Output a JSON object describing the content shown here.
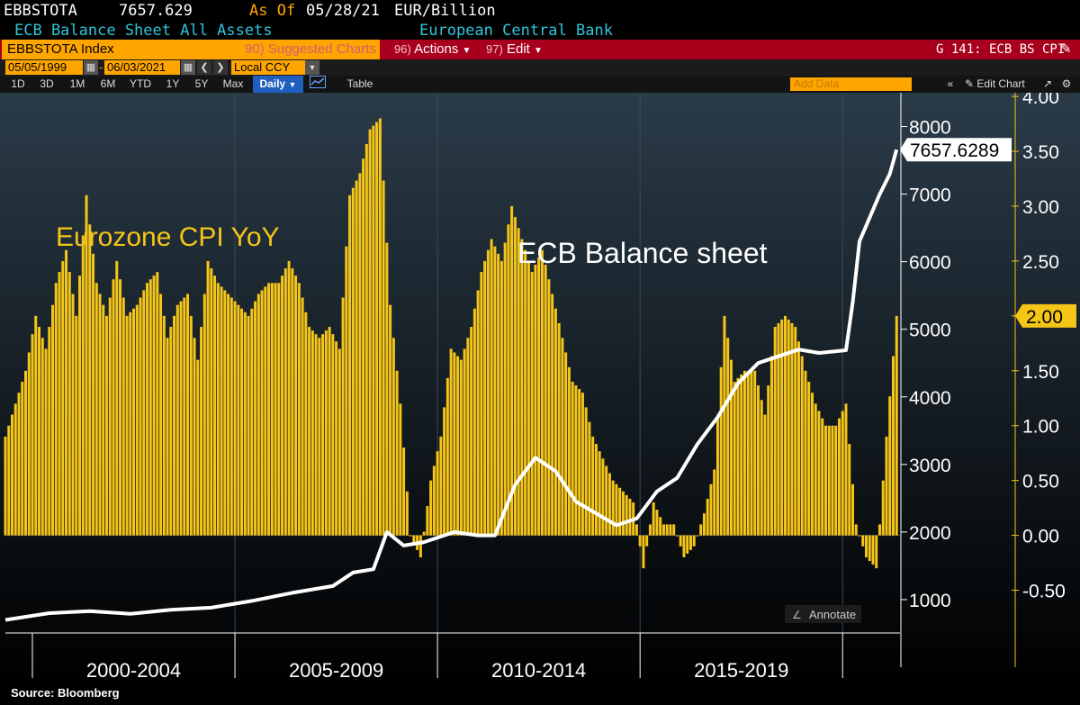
{
  "header": {
    "ticker": "EBBSTOTA",
    "last_value": "7657.629",
    "as_of_label": "As Of",
    "as_of_date": "05/28/21",
    "unit": "EUR/Billion",
    "description": "ECB Balance Sheet All Assets",
    "source_name": "European Central Bank"
  },
  "toolbar": {
    "ticker_field": "EBBSTOTA Index",
    "suggested_num": "90)",
    "suggested_label": "Suggested Charts",
    "actions_num": "96)",
    "actions_label": "Actions",
    "edit_num": "97)",
    "edit_label": "Edit",
    "chart_id": "G 141: ECB BS CPI",
    "start_date": "05/05/1999",
    "end_date": "06/03/2021",
    "currency": "Local CCY",
    "ranges": [
      "1D",
      "3D",
      "1M",
      "6M",
      "YTD",
      "1Y",
      "5Y",
      "Max"
    ],
    "frequency": "Daily",
    "table_label": "Table",
    "add_data_placeholder": "Add Data",
    "edit_chart_label": "Edit Chart",
    "annotate_label": "Annotate"
  },
  "footer": {
    "source": "Source: Bloomberg"
  },
  "colors": {
    "background_top": "#2a3b48",
    "background_bottom": "#000000",
    "cpi_bars": "#f5c518",
    "balance_line": "#ffffff",
    "accent_orange": "#ffa500",
    "toolbar_red": "#a8001c"
  },
  "chart_data": {
    "type": "bar",
    "annotations": [
      "Eurozone CPI YoY",
      "ECB Balance sheet"
    ],
    "x_category_labels": [
      "2000-2004",
      "2005-2009",
      "2010-2014",
      "2015-2019"
    ],
    "xlim": [
      "1999-05",
      "2021-06"
    ],
    "left_axis": {
      "ylim": [
        0,
        8500
      ],
      "ticks": [
        1000,
        2000,
        3000,
        4000,
        5000,
        6000,
        7000,
        8000
      ],
      "tick_labels": [
        "1000",
        "2000",
        "3000",
        "4000",
        "5000",
        "6000",
        "7000",
        "8000"
      ]
    },
    "right_axis": {
      "ylim": [
        -0.75,
        4.05
      ],
      "ticks": [
        -0.5,
        0,
        0.5,
        1,
        1.5,
        2,
        2.5,
        3,
        3.5,
        4
      ],
      "tick_labels": [
        "-0.50",
        "0.00",
        "0.50",
        "1.00",
        "1.50",
        "2.00",
        "2.50",
        "3.00",
        "3.50",
        "4.00"
      ]
    },
    "last_value_labels": {
      "balance_sheet": "7657.6289",
      "cpi": "2.00"
    },
    "series": [
      {
        "name": "Eurozone CPI YoY",
        "kind": "bar",
        "axis": "right",
        "points": [
          [
            "1999-05",
            0.9
          ],
          [
            "1999-08",
            1.2
          ],
          [
            "1999-11",
            1.5
          ],
          [
            "2000-02",
            2.0
          ],
          [
            "2000-05",
            1.7
          ],
          [
            "2000-08",
            2.3
          ],
          [
            "2000-11",
            2.6
          ],
          [
            "2001-02",
            2.0
          ],
          [
            "2001-05",
            3.1
          ],
          [
            "2001-08",
            2.3
          ],
          [
            "2001-11",
            2.0
          ],
          [
            "2002-02",
            2.5
          ],
          [
            "2002-05",
            2.0
          ],
          [
            "2002-08",
            2.1
          ],
          [
            "2002-11",
            2.3
          ],
          [
            "2003-02",
            2.4
          ],
          [
            "2003-05",
            1.8
          ],
          [
            "2003-08",
            2.1
          ],
          [
            "2003-11",
            2.2
          ],
          [
            "2004-02",
            1.6
          ],
          [
            "2004-05",
            2.5
          ],
          [
            "2004-08",
            2.3
          ],
          [
            "2004-11",
            2.2
          ],
          [
            "2005-02",
            2.1
          ],
          [
            "2005-05",
            2.0
          ],
          [
            "2005-08",
            2.2
          ],
          [
            "2005-11",
            2.3
          ],
          [
            "2006-02",
            2.3
          ],
          [
            "2006-05",
            2.5
          ],
          [
            "2006-08",
            2.3
          ],
          [
            "2006-11",
            1.9
          ],
          [
            "2007-02",
            1.8
          ],
          [
            "2007-05",
            1.9
          ],
          [
            "2007-08",
            1.7
          ],
          [
            "2007-11",
            3.1
          ],
          [
            "2008-02",
            3.3
          ],
          [
            "2008-05",
            3.7
          ],
          [
            "2008-08",
            3.8
          ],
          [
            "2008-11",
            2.1
          ],
          [
            "2009-02",
            1.2
          ],
          [
            "2009-05",
            0.0
          ],
          [
            "2009-08",
            -0.2
          ],
          [
            "2009-11",
            0.5
          ],
          [
            "2010-02",
            0.9
          ],
          [
            "2010-05",
            1.7
          ],
          [
            "2010-08",
            1.6
          ],
          [
            "2010-11",
            1.9
          ],
          [
            "2011-02",
            2.4
          ],
          [
            "2011-05",
            2.7
          ],
          [
            "2011-08",
            2.5
          ],
          [
            "2011-11",
            3.0
          ],
          [
            "2012-02",
            2.7
          ],
          [
            "2012-05",
            2.4
          ],
          [
            "2012-08",
            2.6
          ],
          [
            "2012-11",
            2.2
          ],
          [
            "2013-02",
            1.8
          ],
          [
            "2013-05",
            1.4
          ],
          [
            "2013-08",
            1.3
          ],
          [
            "2013-11",
            0.9
          ],
          [
            "2014-02",
            0.7
          ],
          [
            "2014-05",
            0.5
          ],
          [
            "2014-08",
            0.4
          ],
          [
            "2014-11",
            0.3
          ],
          [
            "2015-02",
            -0.3
          ],
          [
            "2015-05",
            0.3
          ],
          [
            "2015-08",
            0.1
          ],
          [
            "2015-11",
            0.1
          ],
          [
            "2016-02",
            -0.2
          ],
          [
            "2016-05",
            -0.1
          ],
          [
            "2016-08",
            0.2
          ],
          [
            "2016-11",
            0.6
          ],
          [
            "2017-02",
            2.0
          ],
          [
            "2017-05",
            1.4
          ],
          [
            "2017-08",
            1.5
          ],
          [
            "2017-11",
            1.5
          ],
          [
            "2018-02",
            1.1
          ],
          [
            "2018-05",
            1.9
          ],
          [
            "2018-08",
            2.0
          ],
          [
            "2018-11",
            1.9
          ],
          [
            "2019-02",
            1.5
          ],
          [
            "2019-05",
            1.2
          ],
          [
            "2019-08",
            1.0
          ],
          [
            "2019-11",
            1.0
          ],
          [
            "2020-02",
            1.2
          ],
          [
            "2020-05",
            0.1
          ],
          [
            "2020-08",
            -0.2
          ],
          [
            "2020-11",
            -0.3
          ],
          [
            "2021-02",
            0.9
          ],
          [
            "2021-05",
            2.0
          ]
        ]
      },
      {
        "name": "ECB Balance sheet",
        "kind": "line",
        "axis": "left",
        "points": [
          [
            "1999-05",
            700
          ],
          [
            "2000-06",
            800
          ],
          [
            "2001-06",
            830
          ],
          [
            "2002-06",
            790
          ],
          [
            "2003-06",
            850
          ],
          [
            "2004-06",
            880
          ],
          [
            "2005-06",
            980
          ],
          [
            "2006-06",
            1100
          ],
          [
            "2007-06",
            1200
          ],
          [
            "2007-12",
            1400
          ],
          [
            "2008-06",
            1450
          ],
          [
            "2008-10",
            2000
          ],
          [
            "2009-03",
            1800
          ],
          [
            "2009-09",
            1850
          ],
          [
            "2010-06",
            2000
          ],
          [
            "2011-01",
            1950
          ],
          [
            "2011-06",
            1950
          ],
          [
            "2011-12",
            2700
          ],
          [
            "2012-06",
            3100
          ],
          [
            "2012-12",
            2900
          ],
          [
            "2013-06",
            2450
          ],
          [
            "2014-06",
            2100
          ],
          [
            "2014-12",
            2200
          ],
          [
            "2015-06",
            2600
          ],
          [
            "2015-12",
            2800
          ],
          [
            "2016-06",
            3300
          ],
          [
            "2016-12",
            3700
          ],
          [
            "2017-06",
            4200
          ],
          [
            "2017-12",
            4500
          ],
          [
            "2018-06",
            4600
          ],
          [
            "2018-12",
            4700
          ],
          [
            "2019-06",
            4650
          ],
          [
            "2019-12",
            4680
          ],
          [
            "2020-02",
            4690
          ],
          [
            "2020-04",
            5400
          ],
          [
            "2020-06",
            6300
          ],
          [
            "2020-12",
            7000
          ],
          [
            "2021-03",
            7300
          ],
          [
            "2021-05",
            7657.6289
          ]
        ]
      }
    ]
  }
}
